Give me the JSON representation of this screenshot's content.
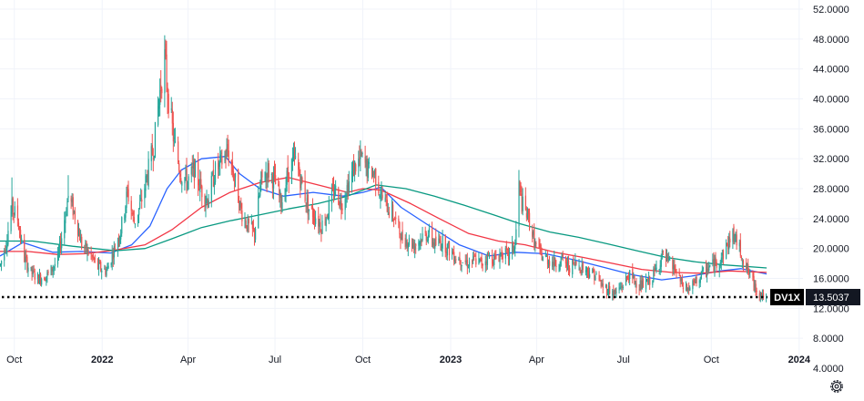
{
  "colors": {
    "background": "#ffffff",
    "grid": "#f0f3fa",
    "text": "#131722",
    "candle_up": "#26a69a",
    "candle_down": "#ef5350",
    "ma_blue": "#2962ff",
    "ma_red": "#f23645",
    "ma_green": "#089981",
    "price_line": "#000000",
    "symbol_label_bg": "#000000",
    "price_label_bg": "#131722",
    "label_text": "#ffffff"
  },
  "price_tag": {
    "symbol": "DV1X",
    "value": "13.5037"
  },
  "settings_icon": "gear-icon",
  "chart_data": {
    "type": "candlestick",
    "price_axis": {
      "position": "right",
      "range": [
        4,
        52
      ],
      "ticks": [
        "52.0000",
        "48.0000",
        "44.0000",
        "40.0000",
        "36.0000",
        "32.0000",
        "28.0000",
        "24.0000",
        "20.0000",
        "16.0000",
        "12.0000",
        "8.0000",
        "4.0000"
      ]
    },
    "time_axis": {
      "range": [
        "2021-09-16",
        "2024-01-05"
      ],
      "ticks": [
        {
          "date": "2021-10-01",
          "label": "Oct",
          "bold": false
        },
        {
          "date": "2022-01-01",
          "label": "2022",
          "bold": true
        },
        {
          "date": "2022-04-01",
          "label": "Apr",
          "bold": false
        },
        {
          "date": "2022-07-01",
          "label": "Jul",
          "bold": false
        },
        {
          "date": "2022-10-01",
          "label": "Oct",
          "bold": false
        },
        {
          "date": "2023-01-01",
          "label": "2023",
          "bold": true
        },
        {
          "date": "2023-04-01",
          "label": "Apr",
          "bold": false
        },
        {
          "date": "2023-07-01",
          "label": "Jul",
          "bold": false
        },
        {
          "date": "2023-10-01",
          "label": "Oct",
          "bold": false
        },
        {
          "date": "2024-01-01",
          "label": "2024",
          "bold": true
        }
      ]
    },
    "last_price": 13.5037,
    "price_path": [
      [
        "2021-09-16",
        17.8
      ],
      [
        "2021-09-22",
        21.0
      ],
      [
        "2021-09-28",
        25.5
      ],
      [
        "2021-10-04",
        24.0
      ],
      [
        "2021-10-10",
        19.0
      ],
      [
        "2021-10-18",
        16.8
      ],
      [
        "2021-10-26",
        16.0
      ],
      [
        "2021-11-05",
        16.5
      ],
      [
        "2021-11-15",
        18.5
      ],
      [
        "2021-11-26",
        27.0
      ],
      [
        "2021-12-03",
        24.5
      ],
      [
        "2021-12-10",
        20.5
      ],
      [
        "2021-12-20",
        19.0
      ],
      [
        "2021-12-27",
        17.5
      ],
      [
        "2022-01-05",
        17.0
      ],
      [
        "2022-01-12",
        19.5
      ],
      [
        "2022-01-20",
        22.5
      ],
      [
        "2022-01-27",
        27.5
      ],
      [
        "2022-02-03",
        23.5
      ],
      [
        "2022-02-10",
        26.0
      ],
      [
        "2022-02-17",
        30.0
      ],
      [
        "2022-02-24",
        34.0
      ],
      [
        "2022-03-01",
        40.0
      ],
      [
        "2022-03-07",
        45.5
      ],
      [
        "2022-03-10",
        41.0
      ],
      [
        "2022-03-17",
        34.0
      ],
      [
        "2022-03-24",
        30.0
      ],
      [
        "2022-03-31",
        29.0
      ],
      [
        "2022-04-07",
        30.5
      ],
      [
        "2022-04-14",
        28.0
      ],
      [
        "2022-04-21",
        26.5
      ],
      [
        "2022-04-28",
        30.0
      ],
      [
        "2022-05-05",
        31.5
      ],
      [
        "2022-05-12",
        33.0
      ],
      [
        "2022-05-19",
        29.5
      ],
      [
        "2022-05-26",
        25.0
      ],
      [
        "2022-06-02",
        23.0
      ],
      [
        "2022-06-09",
        22.0
      ],
      [
        "2022-06-16",
        29.0
      ],
      [
        "2022-06-23",
        30.5
      ],
      [
        "2022-06-30",
        29.0
      ],
      [
        "2022-07-07",
        26.0
      ],
      [
        "2022-07-14",
        30.0
      ],
      [
        "2022-07-21",
        32.0
      ],
      [
        "2022-07-28",
        29.0
      ],
      [
        "2022-08-04",
        25.5
      ],
      [
        "2022-08-11",
        24.5
      ],
      [
        "2022-08-18",
        23.0
      ],
      [
        "2022-08-25",
        25.0
      ],
      [
        "2022-09-01",
        28.0
      ],
      [
        "2022-09-08",
        26.0
      ],
      [
        "2022-09-15",
        28.5
      ],
      [
        "2022-09-22",
        31.0
      ],
      [
        "2022-09-29",
        32.0
      ],
      [
        "2022-10-06",
        30.5
      ],
      [
        "2022-10-13",
        30.0
      ],
      [
        "2022-10-20",
        27.0
      ],
      [
        "2022-10-27",
        25.5
      ],
      [
        "2022-11-03",
        24.0
      ],
      [
        "2022-11-10",
        21.5
      ],
      [
        "2022-11-17",
        21.0
      ],
      [
        "2022-11-24",
        20.5
      ],
      [
        "2022-12-01",
        21.5
      ],
      [
        "2022-12-08",
        22.0
      ],
      [
        "2022-12-15",
        20.5
      ],
      [
        "2022-12-22",
        21.0
      ],
      [
        "2022-12-29",
        20.0
      ],
      [
        "2023-01-05",
        19.0
      ],
      [
        "2023-01-12",
        18.5
      ],
      [
        "2023-01-19",
        18.0
      ],
      [
        "2023-01-26",
        18.5
      ],
      [
        "2023-02-02",
        18.0
      ],
      [
        "2023-02-09",
        19.0
      ],
      [
        "2023-02-16",
        18.5
      ],
      [
        "2023-02-23",
        19.5
      ],
      [
        "2023-03-02",
        19.0
      ],
      [
        "2023-03-09",
        20.5
      ],
      [
        "2023-03-13",
        28.5
      ],
      [
        "2023-03-16",
        26.0
      ],
      [
        "2023-03-23",
        24.0
      ],
      [
        "2023-03-30",
        20.5
      ],
      [
        "2023-04-06",
        19.0
      ],
      [
        "2023-04-13",
        18.5
      ],
      [
        "2023-04-20",
        18.0
      ],
      [
        "2023-04-27",
        18.5
      ],
      [
        "2023-05-04",
        17.5
      ],
      [
        "2023-05-11",
        18.0
      ],
      [
        "2023-05-18",
        17.5
      ],
      [
        "2023-05-25",
        17.0
      ],
      [
        "2023-06-01",
        16.5
      ],
      [
        "2023-06-08",
        15.0
      ],
      [
        "2023-06-15",
        14.5
      ],
      [
        "2023-06-22",
        14.0
      ],
      [
        "2023-06-29",
        15.0
      ],
      [
        "2023-07-06",
        16.5
      ],
      [
        "2023-07-13",
        15.5
      ],
      [
        "2023-07-20",
        15.0
      ],
      [
        "2023-07-27",
        15.5
      ],
      [
        "2023-08-03",
        17.0
      ],
      [
        "2023-08-10",
        19.0
      ],
      [
        "2023-08-17",
        18.0
      ],
      [
        "2023-08-24",
        17.0
      ],
      [
        "2023-08-31",
        15.0
      ],
      [
        "2023-09-07",
        14.5
      ],
      [
        "2023-09-14",
        15.5
      ],
      [
        "2023-09-21",
        16.5
      ],
      [
        "2023-09-28",
        17.5
      ],
      [
        "2023-10-05",
        18.0
      ],
      [
        "2023-10-12",
        19.0
      ],
      [
        "2023-10-19",
        21.0
      ],
      [
        "2023-10-23",
        22.0
      ],
      [
        "2023-10-30",
        20.0
      ],
      [
        "2023-11-06",
        17.5
      ],
      [
        "2023-11-13",
        15.5
      ],
      [
        "2023-11-20",
        14.0
      ],
      [
        "2023-11-27",
        13.5
      ]
    ],
    "spikes": [
      [
        "2021-09-28",
        29.5
      ],
      [
        "2021-11-26",
        29.8
      ],
      [
        "2022-03-07",
        48.5
      ],
      [
        "2022-05-12",
        35.2
      ],
      [
        "2022-07-21",
        34.3
      ],
      [
        "2022-09-29",
        33.3
      ],
      [
        "2023-03-13",
        30.5
      ],
      [
        "2023-10-23",
        22.4
      ]
    ],
    "series": [
      {
        "color_key": "ma_blue",
        "points": [
          [
            "2021-09-16",
            19.0
          ],
          [
            "2021-10-10",
            20.8
          ],
          [
            "2021-11-10",
            19.5
          ],
          [
            "2021-12-10",
            19.6
          ],
          [
            "2022-01-10",
            19.4
          ],
          [
            "2022-02-01",
            20.5
          ],
          [
            "2022-02-20",
            23.0
          ],
          [
            "2022-03-10",
            28.0
          ],
          [
            "2022-03-25",
            30.5
          ],
          [
            "2022-04-15",
            32.0
          ],
          [
            "2022-05-10",
            32.3
          ],
          [
            "2022-05-25",
            30.0
          ],
          [
            "2022-06-15",
            28.0
          ],
          [
            "2022-07-10",
            27.0
          ],
          [
            "2022-08-10",
            27.5
          ],
          [
            "2022-09-10",
            27.0
          ],
          [
            "2022-10-01",
            27.5
          ],
          [
            "2022-10-20",
            28.2
          ],
          [
            "2022-11-10",
            25.5
          ],
          [
            "2022-12-10",
            23.0
          ],
          [
            "2023-01-10",
            20.5
          ],
          [
            "2023-02-10",
            19.0
          ],
          [
            "2023-03-10",
            19.5
          ],
          [
            "2023-04-10",
            19.3
          ],
          [
            "2023-05-10",
            18.5
          ],
          [
            "2023-06-10",
            17.5
          ],
          [
            "2023-07-10",
            16.5
          ],
          [
            "2023-08-10",
            15.8
          ],
          [
            "2023-09-10",
            16.3
          ],
          [
            "2023-10-10",
            17.0
          ],
          [
            "2023-11-01",
            17.3
          ],
          [
            "2023-11-28",
            16.6
          ]
        ]
      },
      {
        "color_key": "ma_red",
        "points": [
          [
            "2021-09-16",
            19.6
          ],
          [
            "2021-10-15",
            19.6
          ],
          [
            "2021-11-15",
            19.2
          ],
          [
            "2021-12-15",
            19.3
          ],
          [
            "2022-01-15",
            19.8
          ],
          [
            "2022-02-15",
            20.5
          ],
          [
            "2022-03-15",
            22.5
          ],
          [
            "2022-04-15",
            25.5
          ],
          [
            "2022-05-15",
            27.5
          ],
          [
            "2022-06-15",
            28.8
          ],
          [
            "2022-07-15",
            29.5
          ],
          [
            "2022-08-15",
            28.5
          ],
          [
            "2022-09-15",
            27.5
          ],
          [
            "2022-10-01",
            28.0
          ],
          [
            "2022-10-20",
            27.8
          ],
          [
            "2022-11-20",
            26.0
          ],
          [
            "2022-12-20",
            24.0
          ],
          [
            "2023-01-20",
            22.0
          ],
          [
            "2023-02-20",
            21.0
          ],
          [
            "2023-03-20",
            20.5
          ],
          [
            "2023-04-20",
            19.5
          ],
          [
            "2023-05-20",
            18.8
          ],
          [
            "2023-06-20",
            18.0
          ],
          [
            "2023-07-20",
            17.2
          ],
          [
            "2023-08-20",
            16.8
          ],
          [
            "2023-09-20",
            16.7
          ],
          [
            "2023-10-20",
            17.0
          ],
          [
            "2023-11-28",
            16.8
          ]
        ]
      },
      {
        "color_key": "ma_green",
        "points": [
          [
            "2021-09-16",
            21.0
          ],
          [
            "2021-10-20",
            21.0
          ],
          [
            "2021-12-01",
            20.3
          ],
          [
            "2022-01-15",
            19.7
          ],
          [
            "2022-02-15",
            20.0
          ],
          [
            "2022-03-15",
            21.3
          ],
          [
            "2022-04-15",
            22.8
          ],
          [
            "2022-05-15",
            23.7
          ],
          [
            "2022-06-15",
            24.5
          ],
          [
            "2022-07-15",
            25.3
          ],
          [
            "2022-08-15",
            26.0
          ],
          [
            "2022-09-15",
            27.0
          ],
          [
            "2022-10-15",
            28.5
          ],
          [
            "2022-11-15",
            28.0
          ],
          [
            "2022-12-15",
            27.0
          ],
          [
            "2023-01-15",
            25.8
          ],
          [
            "2023-02-15",
            24.5
          ],
          [
            "2023-03-15",
            23.3
          ],
          [
            "2023-04-15",
            22.2
          ],
          [
            "2023-05-15",
            21.5
          ],
          [
            "2023-06-15",
            20.6
          ],
          [
            "2023-07-15",
            19.7
          ],
          [
            "2023-08-15",
            18.8
          ],
          [
            "2023-09-15",
            18.2
          ],
          [
            "2023-10-15",
            17.8
          ],
          [
            "2023-11-28",
            17.4
          ]
        ]
      }
    ]
  }
}
